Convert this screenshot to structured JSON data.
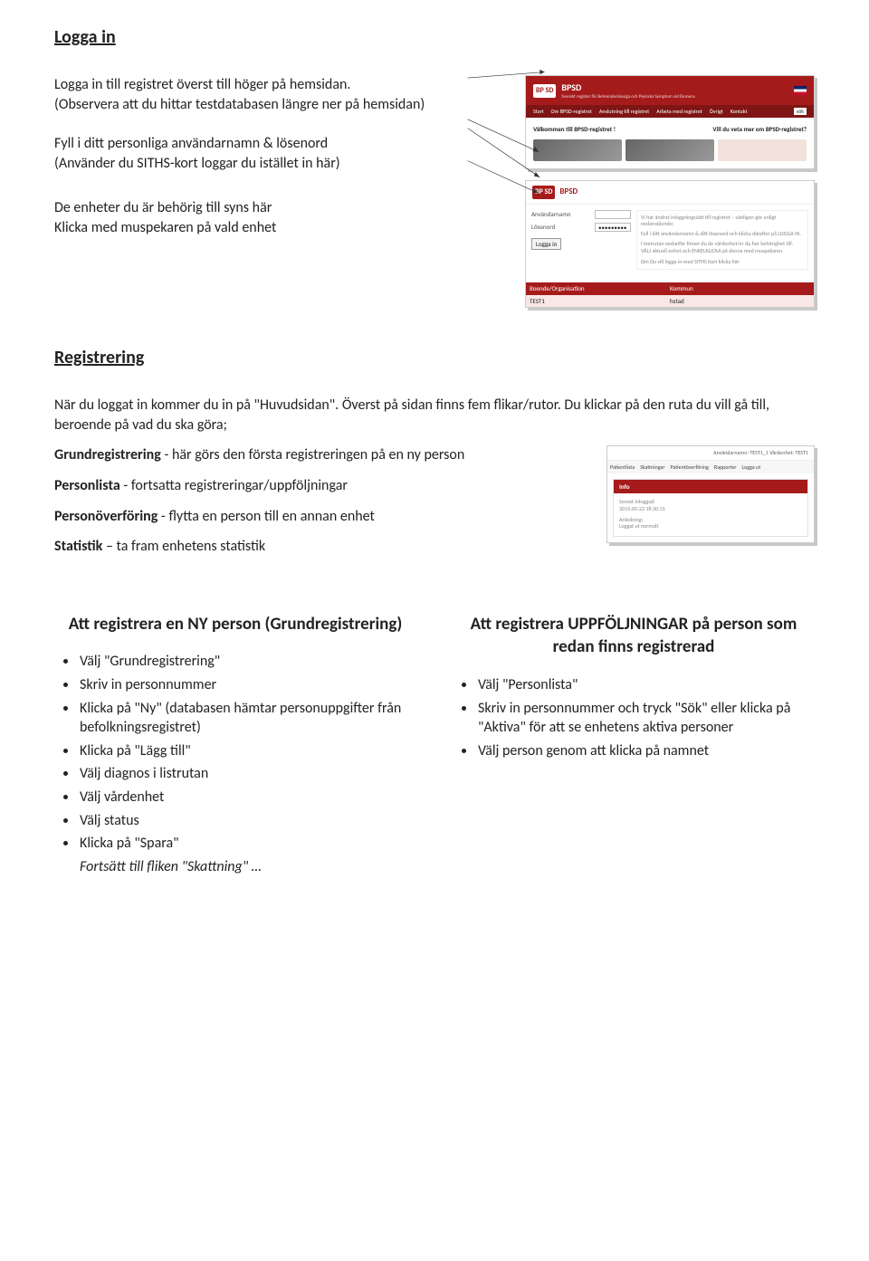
{
  "section1_title": "Logga in",
  "intro_line1": "Logga in till registret överst till höger på hemsidan.",
  "intro_line2": "(Observera att du hittar testdatabasen längre ner på hemsidan)",
  "cred_line1": "Fyll i ditt personliga användarnamn & lösenord",
  "cred_line2": "(Använder du SITHS-kort loggar du istället in här)",
  "enhet_line1": "De enheter du är behörig till syns här",
  "enhet_line2": "Klicka med muspekaren på vald enhet",
  "shot_home": {
    "logo_badge": "BP SD",
    "brand": "BPSD",
    "subtitle": "Svenskt register för Beteendemässiga och Psykiska Symptom vid Demens",
    "nav": [
      "Start",
      "Om BPSD-registret",
      "Anslutning till registret",
      "Arbeta med registret",
      "Övrigt",
      "Kontakt"
    ],
    "welcome_left": "Välkommen till BPSD-registret !",
    "welcome_right": "Vill du veta mer om BPSD-registret?"
  },
  "shot_login": {
    "logo_badge": "BP SD",
    "brand": "BPSD",
    "lbl_user": "Användarnamn",
    "lbl_pass": "Lösenord",
    "val_pass": "•••••••••",
    "btn": "Logga in",
    "info1": "Vi har ändrat inloggningssätt till registret – vänligen gör enligt nedanstående;",
    "info2": "Fyll i ditt användarnamn & ditt lösenord och klicka därefter på LOGGA IN.",
    "info3": "I textrutan nedanför finner du de vårdenhet/er du har behörighet till. VÄLJ aktuell enhet och ENKELKLICKA på denna med muspekaren.",
    "siths": "Om Du vill logga in med SITHS Kort klicka här",
    "tbl_h1": "Boende/Organisation",
    "tbl_h2": "Kommun",
    "tbl_r1a": "TEST1",
    "tbl_r1b": "hstad"
  },
  "shot_info": {
    "topstrip": "Användarnamn: TEST1_1 Vårdenhet: TEST1",
    "tabs": [
      "Patientlista",
      "Skattningar",
      "Patientöverföring",
      "Rapporter",
      "Logga ut"
    ],
    "panel_title": "Info",
    "body1": "Senast inloggad:",
    "body2": "2015-05-22 18:30:31",
    "body3": "Anledning:",
    "body4": "Loggat ut normalt"
  },
  "section2_title": "Registrering",
  "reg_p1a": "När du loggat in kommer du in på \"Huvudsidan\". Överst på sidan finns fem flikar/rutor. Du klickar på den ruta du vill gå till, beroende på vad du ska göra;",
  "grund_label": "Grundregistrering",
  "grund_text": " - här görs den första registreringen på en ny person",
  "personlista_label": "Personlista",
  "personlista_text": " - fortsatta registreringar/uppföljningar",
  "personover_label": "Personöverföring",
  "personover_text": " - flytta en person till en annan enhet",
  "statistik_label": "Statistik",
  "statistik_text": " – ta fram enhetens statistik",
  "colA_title": "Att registrera en NY person (Grundregistrering)",
  "colA_items": [
    "Välj \"Grundregistrering\"",
    "Skriv in personnummer",
    "Klicka på \"Ny\" (databasen hämtar personuppgifter från befolkningsregistret)",
    "Klicka på \"Lägg till\"",
    "Välj diagnos i listrutan",
    "Välj vårdenhet",
    "Välj status",
    "Klicka på \"Spara\""
  ],
  "colA_tail": "Fortsätt till fliken \"Skattning\" …",
  "colB_title": "Att registrera UPPFÖLJNINGAR på person som redan finns registrerad",
  "colB_items": [
    "Välj \"Personlista\"",
    "Skriv in personnummer och tryck \"Sök\" eller klicka på \"Aktiva\" för att se enhetens aktiva personer",
    "Välj person genom att klicka på namnet"
  ],
  "colors": {
    "bpsd_red": "#a51b1b",
    "bpsd_red_dark": "#7f1515",
    "shadow": "#c8c8c8"
  }
}
